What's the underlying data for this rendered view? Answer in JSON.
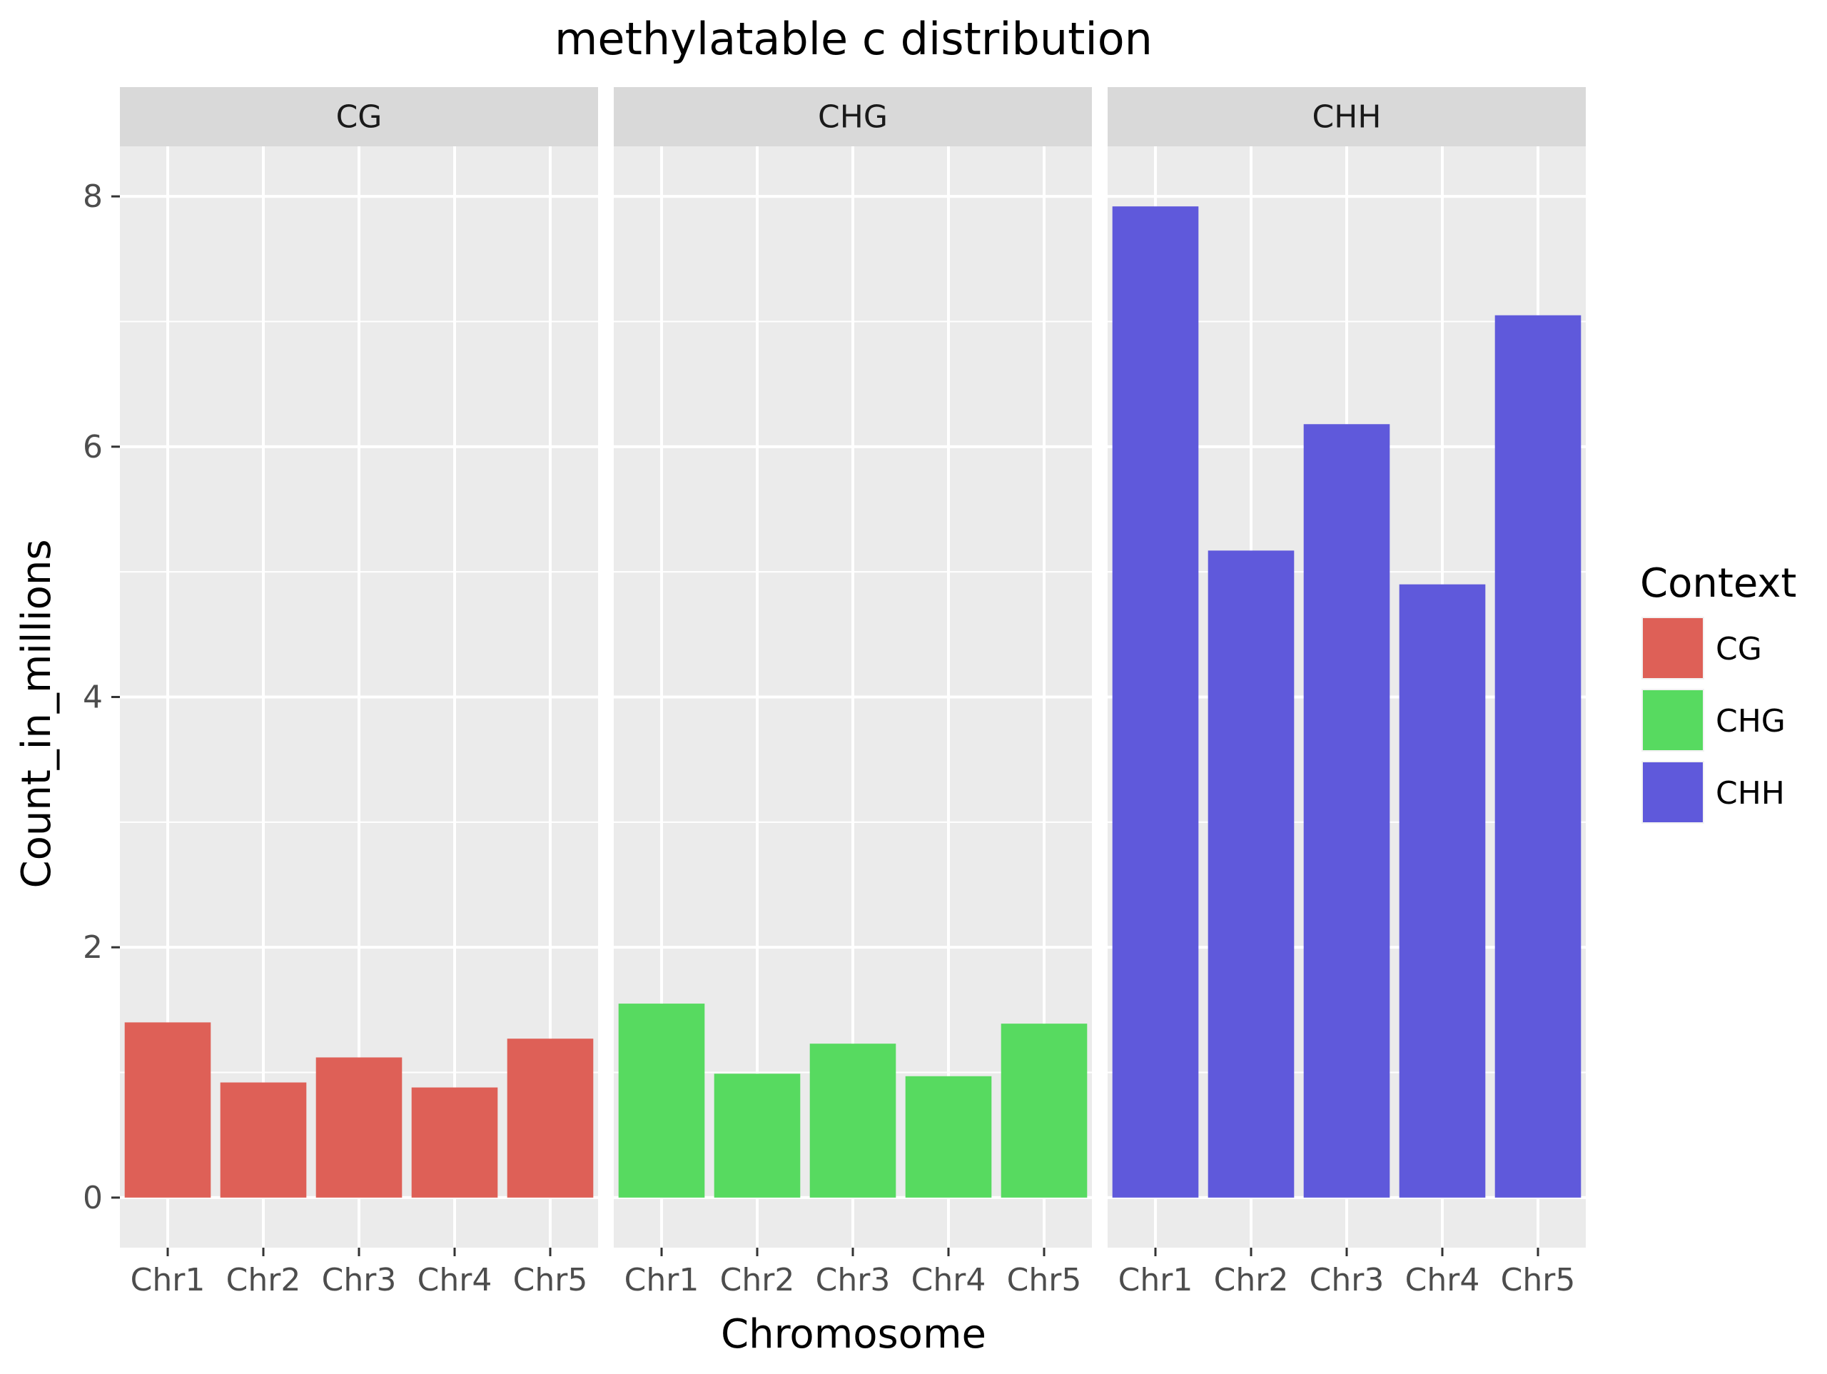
{
  "chart_data": {
    "type": "bar",
    "title": "methylatable c distribution",
    "xlabel": "Chromosome",
    "ylabel": "Count_in_millions",
    "ylim": [
      -0.4,
      8.4
    ],
    "yticks": [
      0,
      2,
      4,
      6,
      8
    ],
    "grid": true,
    "legend_position": "right",
    "legend_title": "Context",
    "categories": [
      "Chr1",
      "Chr2",
      "Chr3",
      "Chr4",
      "Chr5"
    ],
    "facets": [
      {
        "name": "CG",
        "color": "#DE6057",
        "values": [
          1.4,
          0.92,
          1.12,
          0.88,
          1.27
        ]
      },
      {
        "name": "CHG",
        "color": "#57DA60",
        "values": [
          1.55,
          0.99,
          1.23,
          0.97,
          1.39
        ]
      },
      {
        "name": "CHH",
        "color": "#5F59DB",
        "values": [
          7.92,
          5.17,
          6.18,
          4.9,
          7.05
        ]
      }
    ]
  }
}
